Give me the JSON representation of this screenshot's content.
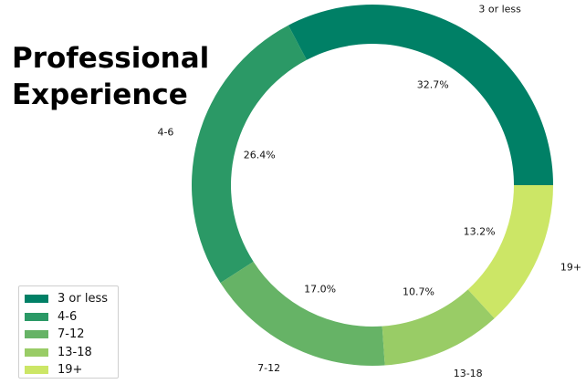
{
  "title_lines": [
    "Professional",
    "Experience"
  ],
  "colors": {
    "3 or less": "#008066",
    "4-6": "#2b9966",
    "7-12": "#66b366",
    "13-18": "#99cc66",
    "19+": "#cce666"
  },
  "chart_data": {
    "type": "pie",
    "variant": "donut",
    "title": "Professional Experience",
    "categories": [
      "3 or less",
      "4-6",
      "7-12",
      "13-18",
      "19+"
    ],
    "values": [
      32.7,
      26.4,
      17.0,
      10.7,
      13.2
    ],
    "value_labels": [
      "32.7%",
      "26.4%",
      "17.0%",
      "10.7%",
      "13.2%"
    ],
    "start_angle_deg": 0,
    "direction": "counterclockwise",
    "legend_position": "lower-left"
  },
  "legend": {
    "items": [
      {
        "label": "3 or less"
      },
      {
        "label": "4-6"
      },
      {
        "label": "7-12"
      },
      {
        "label": "13-18"
      },
      {
        "label": "19+"
      }
    ]
  }
}
